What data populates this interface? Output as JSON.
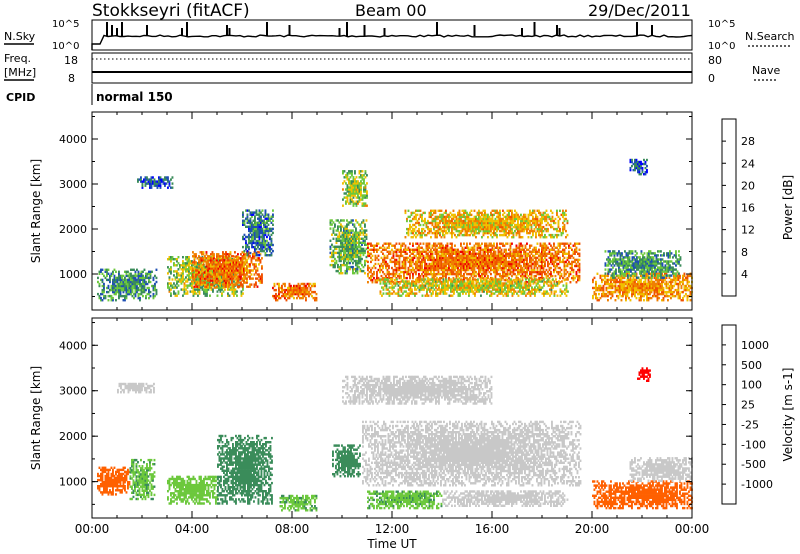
{
  "header": {
    "station": "Stokkseyri (fitACF)",
    "beam": "Beam 00",
    "date": "29/Dec/2011"
  },
  "strip": {
    "nsky_label": "N.Sky",
    "nsky_tick_top": "10^5",
    "nsky_tick_bottom": "10^0",
    "nsearch_label": "N.Search",
    "nsearch_tick_top": "10^5",
    "nsearch_tick_bottom": "10^0",
    "freq_label_1": "Freq.",
    "freq_label_2": "[MHz]",
    "freq_tick_top": "18",
    "freq_tick_bottom": "8",
    "nave_label": "Nave",
    "nave_tick_top": "80",
    "nave_tick_bottom": "0",
    "cpid_label": "CPID",
    "cpid_value": "normal 150"
  },
  "colors": {
    "power": [
      "#0000ff",
      "#1f4fb4",
      "#3a8c5a",
      "#6cc83c",
      "#f0c000",
      "#f08000",
      "#f05000",
      "#f00000"
    ],
    "velocity": [
      "#ff0000",
      "#ff6000",
      "#f0a020",
      "#c8c8c8",
      "#c8c8c8",
      "#6cc83c",
      "#3a8c5a",
      "#1f4fb4",
      "#0000ff"
    ]
  },
  "chart_data": [
    {
      "type": "heatmap",
      "name": "power",
      "ylabel": "Slant Range [km]",
      "xlabel": "",
      "xlim": [
        0,
        24
      ],
      "ylim": [
        200,
        4600
      ],
      "xticks": [
        "00:00",
        "04:00",
        "08:00",
        "12:00",
        "16:00",
        "20:00",
        "00:00"
      ],
      "yticks": [
        1000,
        2000,
        3000,
        4000
      ],
      "colorbar": {
        "label": "Power [dB]",
        "ticks": [
          "4",
          "8",
          "12",
          "16",
          "20",
          "24",
          "28"
        ],
        "range": [
          0,
          30
        ]
      },
      "regions": [
        {
          "t0": 0.2,
          "t1": 2.6,
          "r0": 400,
          "r1": 1100,
          "value": 10
        },
        {
          "t0": 1.8,
          "t1": 3.2,
          "r0": 2900,
          "r1": 3150,
          "value": 6
        },
        {
          "t0": 3.0,
          "t1": 6.0,
          "r0": 500,
          "r1": 1400,
          "value": 14
        },
        {
          "t0": 4.0,
          "t1": 6.8,
          "r0": 700,
          "r1": 1500,
          "value": 22
        },
        {
          "t0": 6.0,
          "t1": 7.2,
          "r0": 1400,
          "r1": 2400,
          "value": 8
        },
        {
          "t0": 7.2,
          "t1": 9.0,
          "r0": 400,
          "r1": 800,
          "value": 22
        },
        {
          "t0": 9.5,
          "t1": 11.0,
          "r0": 1000,
          "r1": 2200,
          "value": 12
        },
        {
          "t0": 11.0,
          "t1": 19.5,
          "r0": 800,
          "r1": 1700,
          "value": 22
        },
        {
          "t0": 12.5,
          "t1": 19.0,
          "r0": 1800,
          "r1": 2400,
          "value": 18
        },
        {
          "t0": 11.5,
          "t1": 19.0,
          "r0": 500,
          "r1": 900,
          "value": 16
        },
        {
          "t0": 10.0,
          "t1": 11.0,
          "r0": 2500,
          "r1": 3300,
          "value": 14
        },
        {
          "t0": 20.0,
          "t1": 24.0,
          "r0": 400,
          "r1": 1000,
          "value": 20
        },
        {
          "t0": 20.5,
          "t1": 23.5,
          "r0": 900,
          "r1": 1500,
          "value": 10
        },
        {
          "t0": 21.5,
          "t1": 22.2,
          "r0": 3200,
          "r1": 3550,
          "value": 6
        }
      ]
    },
    {
      "type": "heatmap",
      "name": "velocity",
      "ylabel": "Slant Range [km]",
      "xlabel": "Time UT",
      "xlim": [
        0,
        24
      ],
      "ylim": [
        200,
        4600
      ],
      "xticks": [
        "00:00",
        "04:00",
        "08:00",
        "12:00",
        "16:00",
        "20:00",
        "00:00"
      ],
      "yticks": [
        1000,
        2000,
        3000,
        4000
      ],
      "colorbar": {
        "label": "Velocity [m s-1]",
        "ticks": [
          "1000",
          "500",
          "100",
          "25",
          "-25",
          "-100",
          "-500",
          "-1000"
        ]
      },
      "regions": [
        {
          "t0": 0.2,
          "t1": 1.5,
          "r0": 700,
          "r1": 1300,
          "value": -200
        },
        {
          "t0": 1.5,
          "t1": 2.5,
          "r0": 600,
          "r1": 1500,
          "value": 80
        },
        {
          "t0": 1.0,
          "t1": 2.5,
          "r0": 2950,
          "r1": 3150,
          "value": 0
        },
        {
          "t0": 3.0,
          "t1": 5.0,
          "r0": 500,
          "r1": 1100,
          "value": 60
        },
        {
          "t0": 5.0,
          "t1": 7.2,
          "r0": 500,
          "r1": 2000,
          "value": 300
        },
        {
          "t0": 7.5,
          "t1": 9.0,
          "r0": 350,
          "r1": 700,
          "value": 80
        },
        {
          "t0": 9.6,
          "t1": 10.7,
          "r0": 1100,
          "r1": 1800,
          "value": 300
        },
        {
          "t0": 10.8,
          "t1": 19.5,
          "r0": 900,
          "r1": 2300,
          "value": 0
        },
        {
          "t0": 10.0,
          "t1": 16.0,
          "r0": 2700,
          "r1": 3300,
          "value": 0
        },
        {
          "t0": 11.0,
          "t1": 14.0,
          "r0": 400,
          "r1": 800,
          "value": 80
        },
        {
          "t0": 14.0,
          "t1": 19.0,
          "r0": 450,
          "r1": 800,
          "value": 0
        },
        {
          "t0": 20.0,
          "t1": 24.0,
          "r0": 400,
          "r1": 1000,
          "value": -300
        },
        {
          "t0": 21.5,
          "t1": 24.0,
          "r0": 1000,
          "r1": 1500,
          "value": 0
        },
        {
          "t0": 21.8,
          "t1": 22.3,
          "r0": 3200,
          "r1": 3500,
          "value": -1000
        }
      ]
    }
  ]
}
